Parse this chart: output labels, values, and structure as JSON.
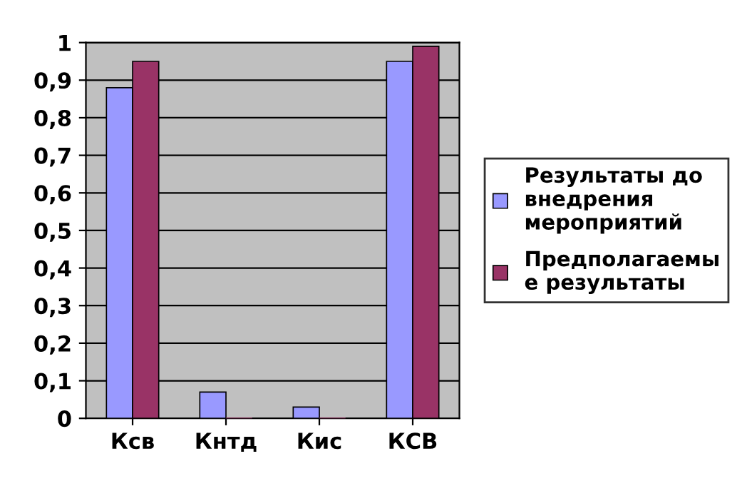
{
  "chart_data": {
    "type": "bar",
    "categories": [
      "Ксв",
      "Кнтд",
      "Кис",
      "КСВ"
    ],
    "series": [
      {
        "name": "Результаты до\nвнедрения\nмероприятий",
        "color": "#9999ff",
        "values": [
          0.88,
          0.07,
          0.03,
          0.95
        ]
      },
      {
        "name": "Предполагаемы\nе результаты",
        "color": "#993366",
        "values": [
          0.95,
          0,
          0,
          0.99
        ]
      }
    ],
    "ylim": [
      0,
      1
    ],
    "yticks": [
      0,
      {
        "value": 0.1,
        "label": "0,1"
      },
      {
        "value": 0.2,
        "label": "0,2"
      },
      {
        "value": 0.3,
        "label": "0,3"
      },
      {
        "value": 0.4,
        "label": "0,4"
      },
      {
        "value": 0.5,
        "label": "0,5"
      },
      {
        "value": 0.6,
        "label": "0,6"
      },
      {
        "value": 0.7,
        "label": "0,7"
      },
      {
        "value": 0.8,
        "label": "0,8"
      },
      {
        "value": 0.9,
        "label": "0,9"
      },
      1
    ],
    "grid": "y",
    "legend": "right"
  }
}
